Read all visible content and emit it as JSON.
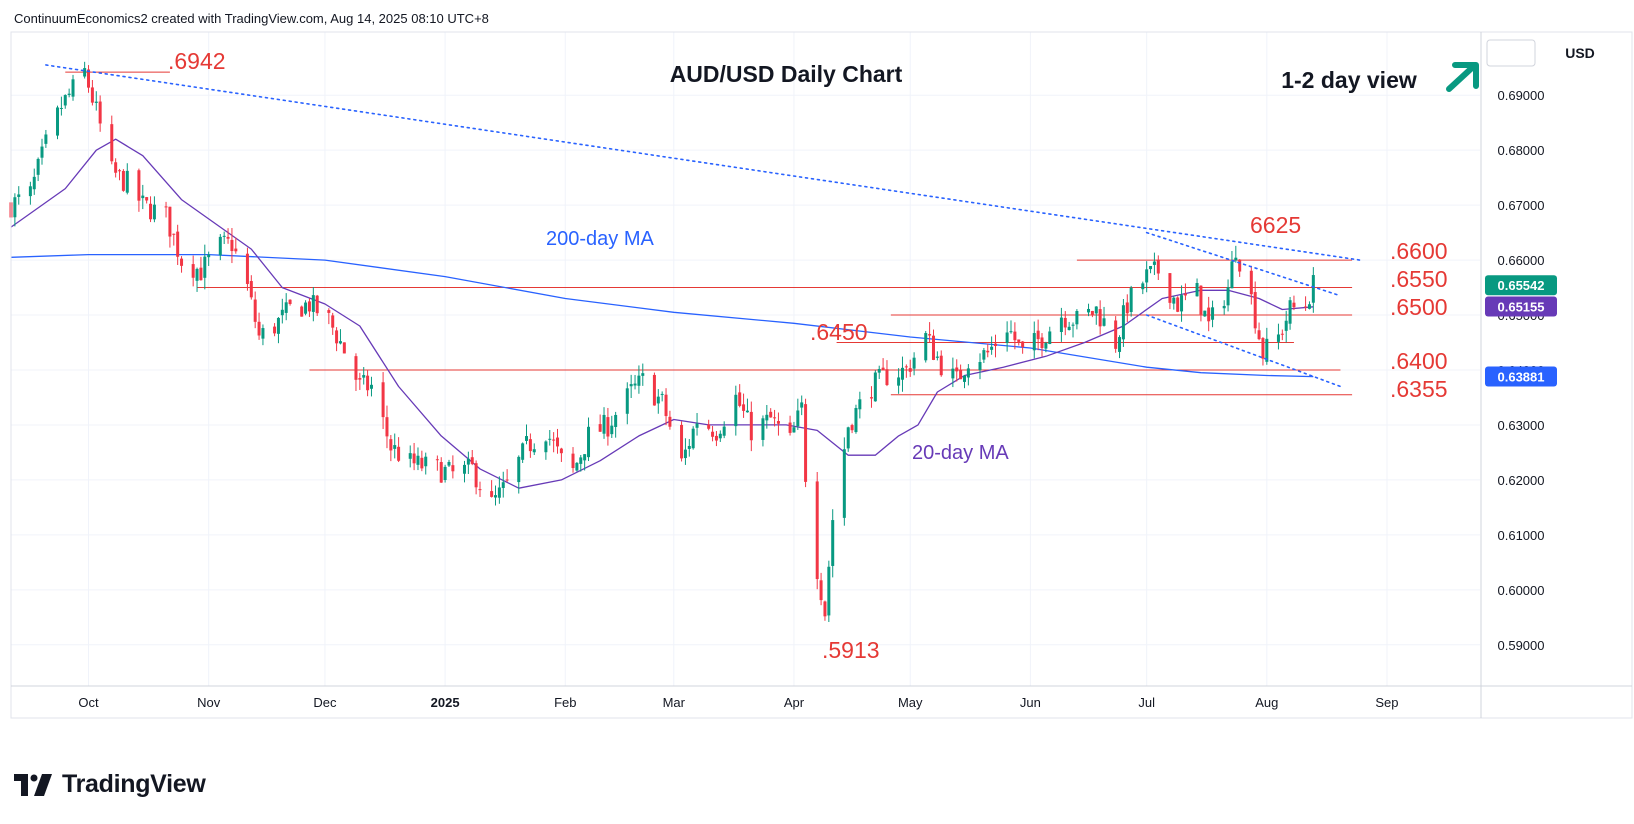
{
  "header": {
    "text": "ContinuumEconomics2 created with TradingView.com, Aug 14, 2025 08:10 UTC+8"
  },
  "footer": {
    "brand": "TradingView",
    "logo_icon": "tradingview-logo-icon"
  },
  "currency_label": "USD",
  "colors": {
    "up": "#089981",
    "down": "#f23645",
    "ma20": "#673ab7",
    "ma200": "#2962ff",
    "level": "#e53935",
    "price_badge": "#089981",
    "ma20_badge": "#673ab7",
    "ma200_badge": "#2962ff",
    "trend_arrow": "#089981"
  },
  "chart_data": {
    "type": "candlestick",
    "title": "AUD/USD Daily Chart",
    "view_label": "1-2 day view",
    "view_direction": "up",
    "ylim": [
      0.5825,
      0.7015
    ],
    "y_ticks": [
      "0.69000",
      "0.68000",
      "0.67000",
      "0.66000",
      "0.65000",
      "0.64000",
      "0.63000",
      "0.62000",
      "0.61000",
      "0.60000",
      "0.59000"
    ],
    "y_tick_values": [
      0.69,
      0.68,
      0.67,
      0.66,
      0.65,
      0.64,
      0.63,
      0.62,
      0.61,
      0.6,
      0.59
    ],
    "x_range": [
      "2024-09-11",
      "2025-09-25"
    ],
    "x_ticks": [
      {
        "date": "2024-10-01",
        "label": "Oct"
      },
      {
        "date": "2024-11-01",
        "label": "Nov"
      },
      {
        "date": "2024-12-01",
        "label": "Dec"
      },
      {
        "date": "2025-01-01",
        "label": "2025"
      },
      {
        "date": "2025-02-01",
        "label": "Feb"
      },
      {
        "date": "2025-03-01",
        "label": "Mar"
      },
      {
        "date": "2025-04-01",
        "label": "Apr"
      },
      {
        "date": "2025-05-01",
        "label": "May"
      },
      {
        "date": "2025-06-01",
        "label": "Jun"
      },
      {
        "date": "2025-07-01",
        "label": "Jul"
      },
      {
        "date": "2025-08-01",
        "label": "Aug"
      },
      {
        "date": "2025-09-01",
        "label": "Sep"
      }
    ],
    "close_path": [
      [
        "2024-09-11",
        0.67
      ],
      [
        "2024-09-16",
        0.672
      ],
      [
        "2024-09-20",
        0.681
      ],
      [
        "2024-09-24",
        0.688
      ],
      [
        "2024-09-26",
        0.69
      ],
      [
        "2024-09-30",
        0.6942
      ],
      [
        "2024-10-03",
        0.687
      ],
      [
        "2024-10-07",
        0.676
      ],
      [
        "2024-10-11",
        0.674
      ],
      [
        "2024-10-15",
        0.67
      ],
      [
        "2024-10-21",
        0.668
      ],
      [
        "2024-10-25",
        0.66
      ],
      [
        "2024-10-30",
        0.658
      ],
      [
        "2024-11-04",
        0.6625
      ],
      [
        "2024-11-07",
        0.663
      ],
      [
        "2024-11-11",
        0.655
      ],
      [
        "2024-11-14",
        0.646
      ],
      [
        "2024-11-18",
        0.648
      ],
      [
        "2024-11-22",
        0.651
      ],
      [
        "2024-11-27",
        0.652
      ],
      [
        "2024-12-02",
        0.649
      ],
      [
        "2024-12-05",
        0.645
      ],
      [
        "2024-12-10",
        0.637
      ],
      [
        "2024-12-13",
        0.637
      ],
      [
        "2024-12-18",
        0.626
      ],
      [
        "2024-12-23",
        0.623
      ],
      [
        "2024-12-30",
        0.622
      ],
      [
        "2025-01-03",
        0.621
      ],
      [
        "2025-01-08",
        0.622
      ],
      [
        "2025-01-13",
        0.6155
      ],
      [
        "2025-01-17",
        0.619
      ],
      [
        "2025-01-22",
        0.626
      ],
      [
        "2025-01-27",
        0.629
      ],
      [
        "2025-01-31",
        0.6235
      ],
      [
        "2025-02-03",
        0.6215
      ],
      [
        "2025-02-07",
        0.628
      ],
      [
        "2025-02-12",
        0.63
      ],
      [
        "2025-02-18",
        0.636
      ],
      [
        "2025-02-21",
        0.638
      ],
      [
        "2025-02-26",
        0.634
      ],
      [
        "2025-03-03",
        0.623
      ],
      [
        "2025-03-07",
        0.631
      ],
      [
        "2025-03-12",
        0.629
      ],
      [
        "2025-03-17",
        0.635
      ],
      [
        "2025-03-21",
        0.629
      ],
      [
        "2025-03-26",
        0.631
      ],
      [
        "2025-03-31",
        0.627
      ],
      [
        "2025-04-03",
        0.633
      ],
      [
        "2025-04-04",
        0.621
      ],
      [
        "2025-04-07",
        0.604
      ],
      [
        "2025-04-09",
        0.596
      ],
      [
        "2025-04-11",
        0.613
      ],
      [
        "2025-04-15",
        0.63
      ],
      [
        "2025-04-21",
        0.637
      ],
      [
        "2025-04-25",
        0.639
      ],
      [
        "2025-04-30",
        0.64
      ],
      [
        "2025-05-05",
        0.646
      ],
      [
        "2025-05-09",
        0.641
      ],
      [
        "2025-05-13",
        0.638
      ],
      [
        "2025-05-16",
        0.642
      ],
      [
        "2025-05-21",
        0.643
      ],
      [
        "2025-05-26",
        0.648
      ],
      [
        "2025-05-30",
        0.643
      ],
      [
        "2025-06-04",
        0.646
      ],
      [
        "2025-06-09",
        0.65
      ],
      [
        "2025-06-13",
        0.649
      ],
      [
        "2025-06-18",
        0.651
      ],
      [
        "2025-06-23",
        0.645
      ],
      [
        "2025-06-26",
        0.652
      ],
      [
        "2025-07-01",
        0.657
      ],
      [
        "2025-07-04",
        0.658
      ],
      [
        "2025-07-09",
        0.652
      ],
      [
        "2025-07-14",
        0.654
      ],
      [
        "2025-07-17",
        0.648
      ],
      [
        "2025-07-22",
        0.655
      ],
      [
        "2025-07-24",
        0.6625
      ],
      [
        "2025-07-28",
        0.653
      ],
      [
        "2025-07-31",
        0.643
      ],
      [
        "2025-08-04",
        0.646
      ],
      [
        "2025-08-07",
        0.651
      ],
      [
        "2025-08-11",
        0.652
      ],
      [
        "2025-08-13",
        0.6554
      ]
    ],
    "series": [
      {
        "name": "20-day MA",
        "points": [
          [
            "2024-09-11",
            0.666
          ],
          [
            "2024-09-25",
            0.673
          ],
          [
            "2024-10-03",
            0.68
          ],
          [
            "2024-10-08",
            0.682
          ],
          [
            "2024-10-15",
            0.679
          ],
          [
            "2024-10-25",
            0.671
          ],
          [
            "2024-11-04",
            0.666
          ],
          [
            "2024-11-12",
            0.662
          ],
          [
            "2024-11-20",
            0.655
          ],
          [
            "2024-12-01",
            0.652
          ],
          [
            "2024-12-10",
            0.648
          ],
          [
            "2024-12-20",
            0.637
          ],
          [
            "2024-12-31",
            0.628
          ],
          [
            "2025-01-10",
            0.622
          ],
          [
            "2025-01-20",
            0.6185
          ],
          [
            "2025-01-31",
            0.62
          ],
          [
            "2025-02-10",
            0.6235
          ],
          [
            "2025-02-20",
            0.628
          ],
          [
            "2025-03-01",
            0.631
          ],
          [
            "2025-03-10",
            0.63
          ],
          [
            "2025-03-20",
            0.63
          ],
          [
            "2025-03-30",
            0.63
          ],
          [
            "2025-04-07",
            0.629
          ],
          [
            "2025-04-15",
            0.6245
          ],
          [
            "2025-04-22",
            0.6245
          ],
          [
            "2025-04-28",
            0.628
          ],
          [
            "2025-05-03",
            0.63
          ],
          [
            "2025-05-08",
            0.636
          ],
          [
            "2025-05-15",
            0.639
          ],
          [
            "2025-05-25",
            0.6405
          ],
          [
            "2025-06-05",
            0.6425
          ],
          [
            "2025-06-15",
            0.645
          ],
          [
            "2025-06-25",
            0.648
          ],
          [
            "2025-07-05",
            0.653
          ],
          [
            "2025-07-15",
            0.6545
          ],
          [
            "2025-07-22",
            0.6545
          ],
          [
            "2025-07-30",
            0.653
          ],
          [
            "2025-08-05",
            0.651
          ],
          [
            "2025-08-13",
            0.6515
          ]
        ]
      },
      {
        "name": "200-day MA",
        "points": [
          [
            "2024-09-11",
            0.6605
          ],
          [
            "2024-10-01",
            0.661
          ],
          [
            "2024-11-01",
            0.661
          ],
          [
            "2024-12-01",
            0.66
          ],
          [
            "2025-01-01",
            0.657
          ],
          [
            "2025-02-01",
            0.653
          ],
          [
            "2025-03-01",
            0.6505
          ],
          [
            "2025-04-01",
            0.6485
          ],
          [
            "2025-05-01",
            0.646
          ],
          [
            "2025-06-01",
            0.644
          ],
          [
            "2025-07-01",
            0.6405
          ],
          [
            "2025-07-15",
            0.6395
          ],
          [
            "2025-08-01",
            0.639
          ],
          [
            "2025-08-13",
            0.6388
          ]
        ]
      }
    ],
    "horizontal_levels": [
      {
        "label": ".6942",
        "value": 0.6942
      },
      {
        "label": ".6600",
        "value": 0.66
      },
      {
        "label": ".6550",
        "value": 0.655
      },
      {
        "label": ".6500",
        "value": 0.65
      },
      {
        "label": ".6450",
        "value": 0.645
      },
      {
        "label": ".6400",
        "value": 0.64
      },
      {
        "label": ".6355",
        "value": 0.6355
      }
    ],
    "annotations": [
      ".6942",
      "6625",
      ".6600",
      ".6550",
      ".6500",
      ".6450",
      ".6400",
      ".6355",
      ".5913",
      "200-day MA",
      "20-day MA"
    ],
    "trendlines": [
      {
        "name": "long-term resistance",
        "from": [
          "2024-09-20",
          0.6955
        ],
        "to": [
          "2025-08-25",
          0.66
        ]
      },
      {
        "name": "channel top",
        "from": [
          "2025-07-01",
          0.665
        ],
        "to": [
          "2025-08-20",
          0.6535
        ]
      },
      {
        "name": "channel bottom",
        "from": [
          "2025-07-01",
          0.65
        ],
        "to": [
          "2025-08-20",
          0.637
        ]
      }
    ],
    "price_badges": [
      {
        "label": "0.65542",
        "value": 0.65542
      },
      {
        "label": "0.65155",
        "value": 0.65155
      },
      {
        "label": "0.63881",
        "value": 0.63881
      }
    ],
    "grid": true,
    "legend": "none"
  }
}
